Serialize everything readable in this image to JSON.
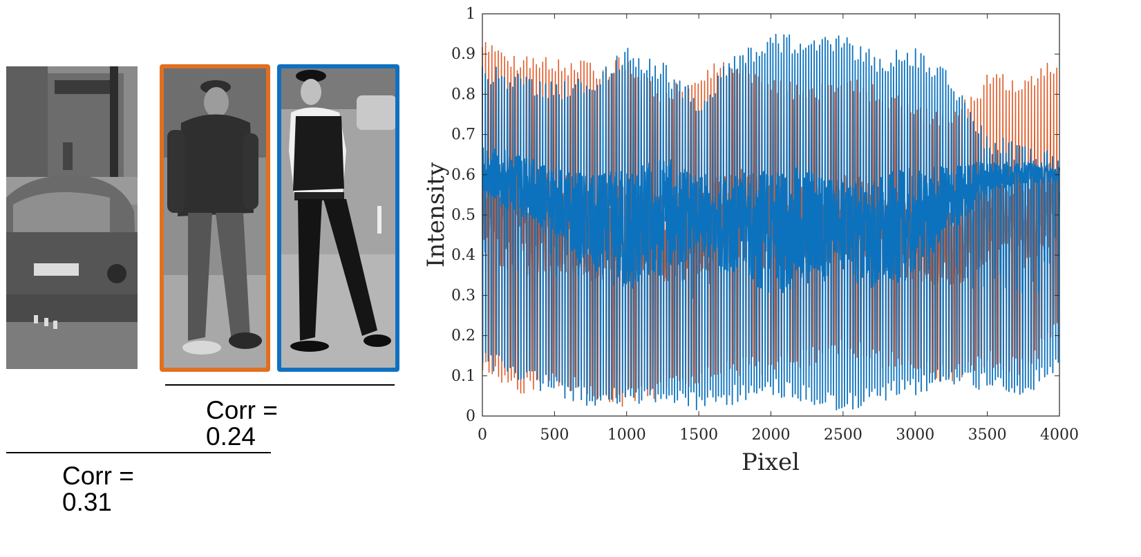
{
  "photos": {
    "street": {
      "description_icon": "street-scene-car"
    },
    "man": {
      "description_icon": "person-cap-hoodie"
    },
    "officer": {
      "description_icon": "police-officer"
    }
  },
  "labels": {
    "corr_orange": "Corr = 0.24",
    "corr_blue": "Corr = 0.31"
  },
  "colors": {
    "orange": "#E07020",
    "blue": "#1070C0",
    "series_orange": "#E05A26",
    "series_blue": "#0D72BD"
  },
  "chart_data": {
    "type": "line",
    "xlabel": "Pixel",
    "ylabel": "Intensity",
    "xlim": [
      0,
      4000
    ],
    "ylim": [
      0,
      1
    ],
    "xticks": [
      0,
      500,
      1000,
      1500,
      2000,
      2500,
      3000,
      3500,
      4000
    ],
    "yticks": [
      0,
      0.1,
      0.2,
      0.3,
      0.4,
      0.5,
      0.6,
      0.7,
      0.8,
      0.9,
      1
    ],
    "grid": false,
    "series": [
      {
        "color": "#E05A26",
        "n_points": 4000,
        "period_pixels": 22,
        "envelope_x": [
          0,
          250,
          500,
          750,
          1000,
          1250,
          1500,
          1750,
          2000,
          2250,
          2500,
          2750,
          3000,
          3250,
          3500,
          3750,
          4000
        ],
        "envelope_low": [
          0.1,
          0.05,
          0.06,
          0.04,
          0.02,
          0.05,
          0.08,
          0.1,
          0.1,
          0.12,
          0.15,
          0.12,
          0.1,
          0.08,
          0.12,
          0.1,
          0.2
        ],
        "envelope_high": [
          0.95,
          0.9,
          0.9,
          0.88,
          0.9,
          0.82,
          0.86,
          0.9,
          0.85,
          0.82,
          0.86,
          0.82,
          0.78,
          0.75,
          0.85,
          0.85,
          0.9
        ]
      },
      {
        "color": "#0D72BD",
        "n_points": 4000,
        "period_pixels": 19,
        "envelope_x": [
          0,
          250,
          500,
          750,
          1000,
          1250,
          1500,
          1750,
          2000,
          2250,
          2500,
          2750,
          3000,
          3250,
          3500,
          3750,
          4000
        ],
        "envelope_low": [
          0.12,
          0.08,
          0.05,
          0.02,
          0.03,
          0.02,
          0.01,
          0.03,
          0.05,
          0.03,
          0.01,
          0.03,
          0.05,
          0.08,
          0.06,
          0.05,
          0.1
        ],
        "envelope_high": [
          0.88,
          0.85,
          0.83,
          0.85,
          0.92,
          0.88,
          0.8,
          0.9,
          0.95,
          0.95,
          0.95,
          0.9,
          0.92,
          0.85,
          0.7,
          0.68,
          0.65
        ],
        "band_low": [
          0.55,
          0.5,
          0.45,
          0.35,
          0.3,
          0.35,
          0.4,
          0.35,
          0.3,
          0.32,
          0.35,
          0.3,
          0.35,
          0.45,
          0.55,
          0.58,
          0.58
        ],
        "band_high": [
          0.68,
          0.65,
          0.62,
          0.6,
          0.62,
          0.65,
          0.6,
          0.6,
          0.62,
          0.62,
          0.58,
          0.6,
          0.62,
          0.62,
          0.64,
          0.63,
          0.62
        ]
      }
    ]
  }
}
